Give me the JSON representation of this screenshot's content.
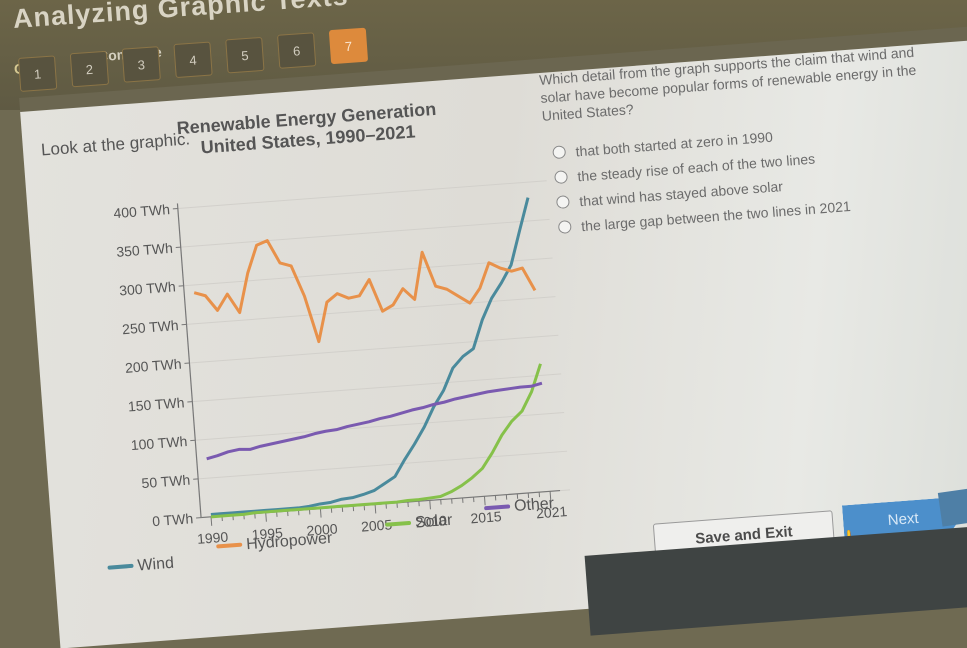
{
  "header": {
    "title": "Analyzing Graphic Texts",
    "quiz_label": "Quiz",
    "status_label": "Complete",
    "question_nav": [
      {
        "label": "1",
        "active": false
      },
      {
        "label": "2",
        "active": false
      },
      {
        "label": "3",
        "active": false
      },
      {
        "label": "4",
        "active": false
      },
      {
        "label": "5",
        "active": false
      },
      {
        "label": "6",
        "active": false
      },
      {
        "label": "7",
        "active": true
      }
    ]
  },
  "content": {
    "instruction": "Look at the graphic.",
    "chart_title_line1": "Renewable Energy Generation",
    "chart_title_line2": "United States, 1990–2021",
    "question": "Which detail from the graph supports the claim that wind and solar have become popular forms of renewable energy in the United States?",
    "options": [
      "that both started at zero in 1990",
      "the steady rise of each of the two lines",
      "that wind has stayed above solar",
      "the large gap between the two lines in 2021"
    ]
  },
  "footer": {
    "save_exit_label": "Save and Exit",
    "next_label": "Next"
  },
  "colors": {
    "accent_active": "#dd8a3c",
    "wind": "#4a8a9c",
    "hydropower": "#e8914a",
    "solar": "#86c14a",
    "other": "#7a5ab0",
    "next_button": "#4c8fcb"
  },
  "chart_data": {
    "type": "line",
    "title": "Renewable Energy Generation United States, 1990–2021",
    "xlabel": "",
    "ylabel": "",
    "ylim": [
      0,
      400
    ],
    "y_ticks": [
      "0 TWh",
      "50 TWh",
      "100 TWh",
      "150 TWh",
      "200 TWh",
      "250 TWh",
      "300 TWh",
      "350 TWh",
      "400 TWh"
    ],
    "x_ticks": [
      "1990",
      "1995",
      "2000",
      "2005",
      "2010",
      "2015",
      "2021"
    ],
    "grid": true,
    "legend_position": "bottom",
    "x": [
      1990,
      1991,
      1992,
      1993,
      1994,
      1995,
      1996,
      1997,
      1998,
      1999,
      2000,
      2001,
      2002,
      2003,
      2004,
      2005,
      2006,
      2007,
      2008,
      2009,
      2010,
      2011,
      2012,
      2013,
      2014,
      2015,
      2016,
      2017,
      2018,
      2019,
      2020,
      2021
    ],
    "series": [
      {
        "name": "Wind",
        "values": [
          3,
          3,
          3,
          3,
          3,
          3,
          3,
          3,
          3,
          4,
          6,
          7,
          10,
          11,
          14,
          18,
          26,
          34,
          55,
          74,
          95,
          120,
          140,
          168,
          182,
          191,
          227,
          254,
          273,
          295,
          338,
          380
        ]
      },
      {
        "name": "Hydropower",
        "values": [
          290,
          285,
          265,
          285,
          260,
          310,
          345,
          350,
          320,
          315,
          275,
          215,
          265,
          275,
          268,
          270,
          290,
          248,
          255,
          275,
          260,
          320,
          275,
          270,
          260,
          250,
          268,
          300,
          292,
          287,
          290,
          260
        ]
      },
      {
        "name": "Solar",
        "values": [
          0,
          0,
          0,
          0,
          1,
          1,
          1,
          1,
          1,
          1,
          1,
          1,
          1,
          1,
          1,
          1,
          1,
          1,
          2,
          2,
          3,
          4,
          9,
          16,
          25,
          36,
          55,
          77,
          94,
          106,
          130,
          165
        ]
      },
      {
        "name": "Other",
        "values": [
          75,
          78,
          82,
          84,
          83,
          86,
          88,
          90,
          92,
          94,
          97,
          99,
          100,
          103,
          105,
          107,
          110,
          112,
          115,
          118,
          120,
          123,
          125,
          128,
          130,
          132,
          134,
          135,
          136,
          137,
          137,
          140
        ]
      }
    ]
  }
}
